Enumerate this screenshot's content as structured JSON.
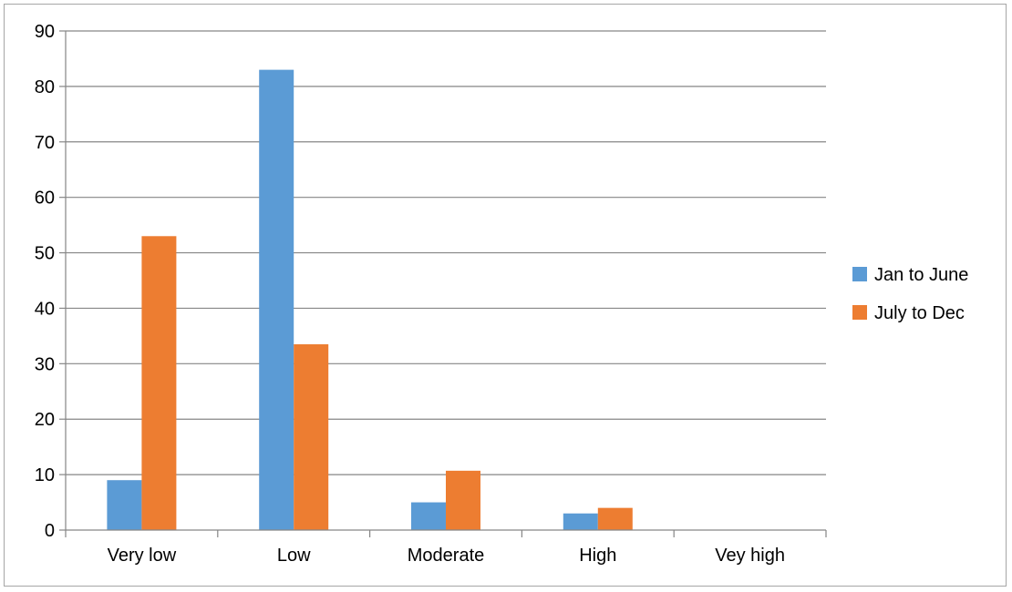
{
  "chart_data": {
    "type": "bar",
    "title": "",
    "xlabel": "",
    "ylabel": "",
    "categories": [
      "Very low",
      "Low",
      "Moderate",
      "High",
      "Vey high"
    ],
    "series": [
      {
        "name": "Jan to June",
        "color": "#5b9bd5",
        "values": [
          9,
          83,
          5,
          3,
          0
        ]
      },
      {
        "name": "July to Dec",
        "color": "#ed7d31",
        "values": [
          53,
          33.5,
          10.7,
          4,
          0
        ]
      }
    ],
    "ylim": [
      0,
      90
    ],
    "yticks": [
      0,
      10,
      20,
      30,
      40,
      50,
      60,
      70,
      80,
      90
    ],
    "grid": true,
    "legend_position": "right"
  }
}
